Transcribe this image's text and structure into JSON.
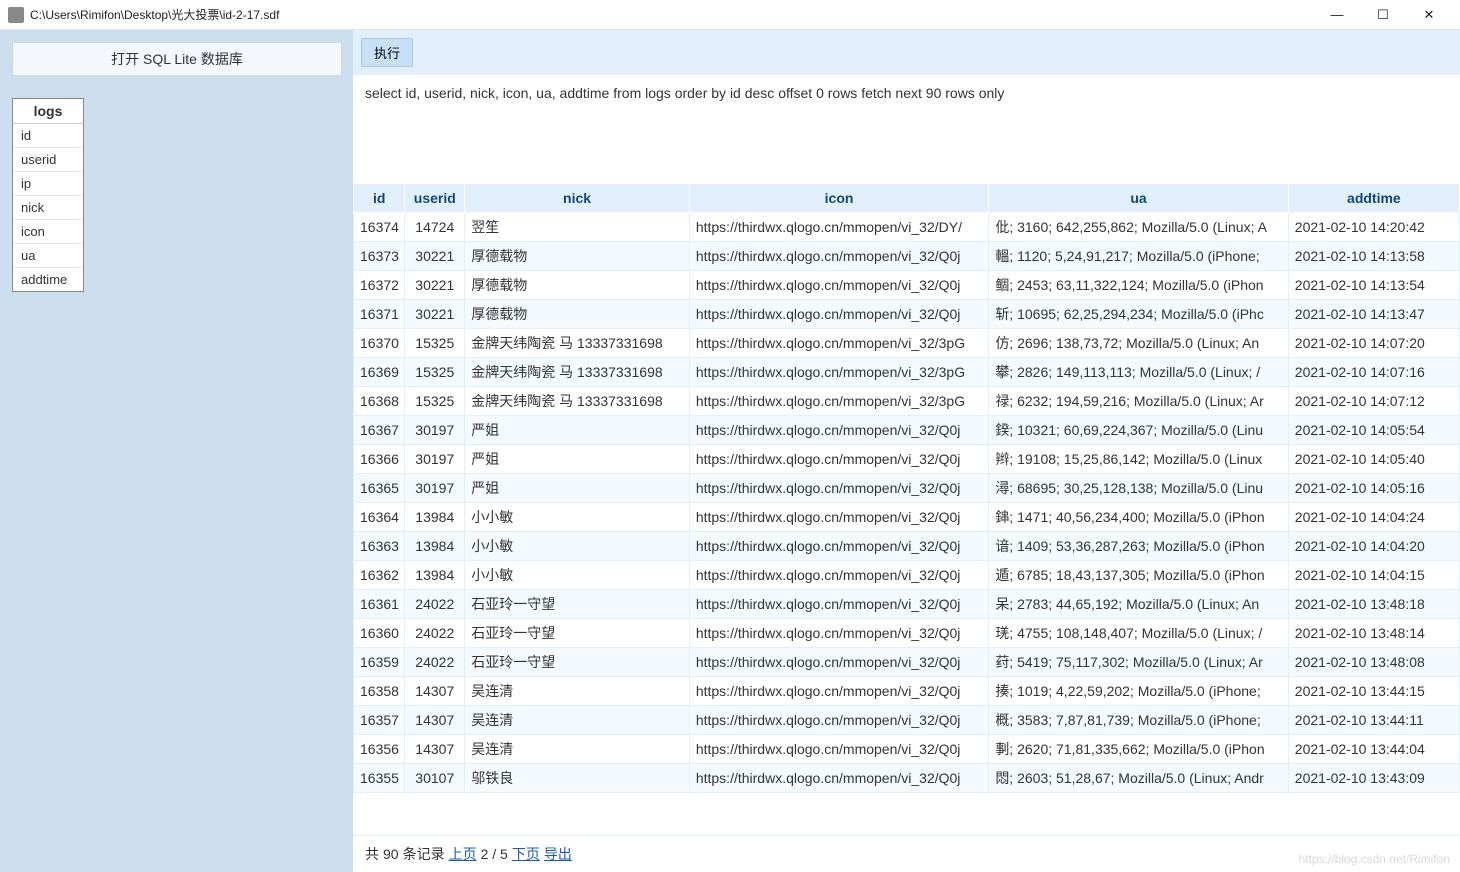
{
  "window": {
    "title": "C:\\Users\\Rimifon\\Desktop\\光大投票\\id-2-17.sdf",
    "min": "—",
    "max": "☐",
    "close": "✕"
  },
  "sidebar": {
    "open_button": "打开 SQL Lite 数据库",
    "table_name": "logs",
    "columns": [
      "id",
      "userid",
      "ip",
      "nick",
      "icon",
      "ua",
      "addtime"
    ]
  },
  "toolbar": {
    "execute": "执行"
  },
  "sql": "select id, userid, nick, icon, ua, addtime from logs order by id desc offset 0 rows fetch next 90 rows only",
  "table": {
    "headers": [
      "id",
      "userid",
      "nick",
      "icon",
      "ua",
      "addtime"
    ],
    "rows": [
      [
        "16374",
        "14724",
        "翌笙",
        "https://thirdwx.qlogo.cn/mmopen/vi_32/DY/",
        "仳; 3160; 642,255,862; Mozilla/5.0 (Linux; A",
        "2021-02-10 14:20:42"
      ],
      [
        "16373",
        "30221",
        "厚德载物",
        "https://thirdwx.qlogo.cn/mmopen/vi_32/Q0j",
        "轀; 1120; 5,24,91,217; Mozilla/5.0 (iPhone;",
        "2021-02-10 14:13:58"
      ],
      [
        "16372",
        "30221",
        "厚德载物",
        "https://thirdwx.qlogo.cn/mmopen/vi_32/Q0j",
        "鲴; 2453; 63,11,322,124; Mozilla/5.0 (iPhon",
        "2021-02-10 14:13:54"
      ],
      [
        "16371",
        "30221",
        "厚德载物",
        "https://thirdwx.qlogo.cn/mmopen/vi_32/Q0j",
        "斩; 10695; 62,25,294,234; Mozilla/5.0 (iPhc",
        "2021-02-10 14:13:47"
      ],
      [
        "16370",
        "15325",
        "金牌天纬陶瓷 马 13337331698",
        "https://thirdwx.qlogo.cn/mmopen/vi_32/3pG",
        "仿; 2696; 138,73,72; Mozilla/5.0 (Linux; An",
        "2021-02-10 14:07:20"
      ],
      [
        "16369",
        "15325",
        "金牌天纬陶瓷 马 13337331698",
        "https://thirdwx.qlogo.cn/mmopen/vi_32/3pG",
        "攀; 2826; 149,113,113; Mozilla/5.0 (Linux; /",
        "2021-02-10 14:07:16"
      ],
      [
        "16368",
        "15325",
        "金牌天纬陶瓷 马 13337331698",
        "https://thirdwx.qlogo.cn/mmopen/vi_32/3pG",
        "禄; 6232; 194,59,216; Mozilla/5.0 (Linux; Ar",
        "2021-02-10 14:07:12"
      ],
      [
        "16367",
        "30197",
        "严姐",
        "https://thirdwx.qlogo.cn/mmopen/vi_32/Q0j",
        "鍨; 10321; 60,69,224,367; Mozilla/5.0 (Linu",
        "2021-02-10 14:05:54"
      ],
      [
        "16366",
        "30197",
        "严姐",
        "https://thirdwx.qlogo.cn/mmopen/vi_32/Q0j",
        "辫; 19108; 15,25,86,142; Mozilla/5.0 (Linux",
        "2021-02-10 14:05:40"
      ],
      [
        "16365",
        "30197",
        "严姐",
        "https://thirdwx.qlogo.cn/mmopen/vi_32/Q0j",
        "潯; 68695; 30,25,128,138; Mozilla/5.0 (Linu",
        "2021-02-10 14:05:16"
      ],
      [
        "16364",
        "13984",
        "小小敏",
        "https://thirdwx.qlogo.cn/mmopen/vi_32/Q0j",
        "鋛; 1471; 40,56,234,400; Mozilla/5.0 (iPhon",
        "2021-02-10 14:04:24"
      ],
      [
        "16363",
        "13984",
        "小小敏",
        "https://thirdwx.qlogo.cn/mmopen/vi_32/Q0j",
        "谙; 1409; 53,36,287,263; Mozilla/5.0 (iPhon",
        "2021-02-10 14:04:20"
      ],
      [
        "16362",
        "13984",
        "小小敏",
        "https://thirdwx.qlogo.cn/mmopen/vi_32/Q0j",
        "遁; 6785; 18,43,137,305; Mozilla/5.0 (iPhon",
        "2021-02-10 14:04:15"
      ],
      [
        "16361",
        "24022",
        "石亚玲一守望",
        "https://thirdwx.qlogo.cn/mmopen/vi_32/Q0j",
        "呆; 2783; 44,65,192; Mozilla/5.0 (Linux; An",
        "2021-02-10 13:48:18"
      ],
      [
        "16360",
        "24022",
        "石亚玲一守望",
        "https://thirdwx.qlogo.cn/mmopen/vi_32/Q0j",
        "琷; 4755; 108,148,407; Mozilla/5.0 (Linux; /",
        "2021-02-10 13:48:14"
      ],
      [
        "16359",
        "24022",
        "石亚玲一守望",
        "https://thirdwx.qlogo.cn/mmopen/vi_32/Q0j",
        "荮; 5419; 75,117,302; Mozilla/5.0 (Linux; Ar",
        "2021-02-10 13:48:08"
      ],
      [
        "16358",
        "14307",
        "吴连清",
        "https://thirdwx.qlogo.cn/mmopen/vi_32/Q0j",
        "揍; 1019; 4,22,59,202; Mozilla/5.0 (iPhone;",
        "2021-02-10 13:44:15"
      ],
      [
        "16357",
        "14307",
        "吴连清",
        "https://thirdwx.qlogo.cn/mmopen/vi_32/Q0j",
        "概; 3583; 7,87,81,739; Mozilla/5.0 (iPhone;",
        "2021-02-10 13:44:11"
      ],
      [
        "16356",
        "14307",
        "吴连清",
        "https://thirdwx.qlogo.cn/mmopen/vi_32/Q0j",
        "剚; 2620; 71,81,335,662; Mozilla/5.0 (iPhon",
        "2021-02-10 13:44:04"
      ],
      [
        "16355",
        "30107",
        "邬铁良",
        "https://thirdwx.qlogo.cn/mmopen/vi_32/Q0j",
        "悶; 2603; 51,28,67; Mozilla/5.0 (Linux; Andr",
        "2021-02-10 13:43:09"
      ]
    ]
  },
  "pager": {
    "prefix": "共",
    "total": "90",
    "records_label": "条记录",
    "prev": "上页",
    "position": "2 / 5",
    "next": "下页",
    "export": "导出"
  },
  "watermark": "https://blog.csdn.net/Rimifon"
}
